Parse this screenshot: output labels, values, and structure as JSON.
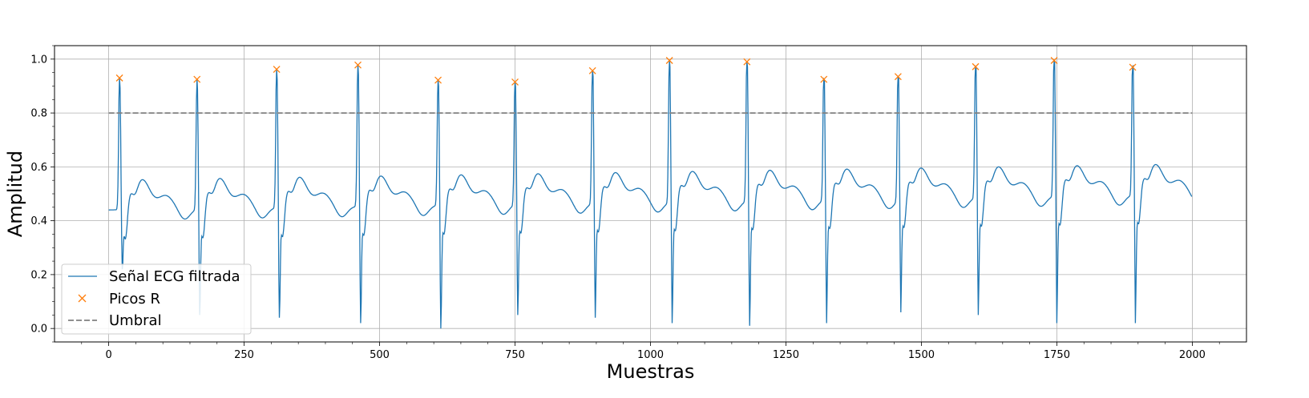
{
  "chart_data": {
    "type": "line",
    "xlabel": "Muestras",
    "ylabel": "Amplitud",
    "xlim": [
      -100,
      2100
    ],
    "ylim": [
      -0.05,
      1.05
    ],
    "x_ticks": [
      0,
      250,
      500,
      750,
      1000,
      1250,
      1500,
      1750,
      2000
    ],
    "x_tick_labels": [
      "0",
      "250",
      "500",
      "750",
      "1000",
      "1250",
      "1500",
      "1750",
      "2000"
    ],
    "y_ticks": [
      0.0,
      0.2,
      0.4,
      0.6,
      0.8,
      1.0
    ],
    "y_tick_labels": [
      "0.0",
      "0.2",
      "0.4",
      "0.6",
      "0.8",
      "1.0"
    ],
    "grid": true,
    "legend_position": "lower-left",
    "signal_samples": 2000,
    "series": [
      {
        "name": "Señal ECG filtrada",
        "kind": "line",
        "color": "#1f77b4",
        "baseline_start": 0.44,
        "baseline_end": 0.5,
        "r_peak_minimums": [
          0.22,
          0.05,
          0.04,
          0.02,
          0.0,
          0.05,
          0.04,
          0.02,
          0.01,
          0.02,
          0.06,
          0.05,
          0.02,
          0.02
        ]
      },
      {
        "name": "Picos R",
        "kind": "markers",
        "marker": "x",
        "color": "#ff7f0e",
        "x": [
          20,
          163,
          310,
          460,
          608,
          750,
          893,
          1035,
          1178,
          1320,
          1457,
          1600,
          1745,
          1890
        ],
        "y": [
          0.93,
          0.925,
          0.962,
          0.978,
          0.922,
          0.915,
          0.957,
          0.995,
          0.99,
          0.925,
          0.935,
          0.972,
          0.995,
          0.97
        ]
      },
      {
        "name": "Umbral",
        "kind": "hline",
        "color": "#808080",
        "linestyle": "dashed",
        "y": 0.8,
        "x_range": [
          0,
          2000
        ]
      }
    ]
  }
}
